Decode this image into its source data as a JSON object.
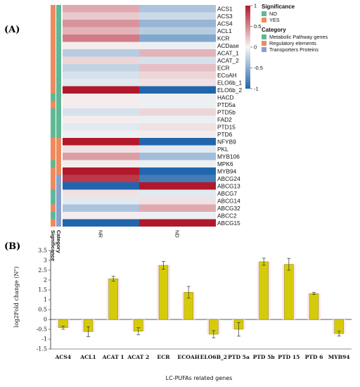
{
  "panel_a_label": "(A)",
  "panel_b_label": "(B)",
  "colors": {
    "sig_no": "#5fb894",
    "sig_yes": "#ef8a5c",
    "cat_metabolic": "#5fb894",
    "cat_regulatory": "#ef8a5c",
    "cat_transporters": "#8aa0cc",
    "bar_fill": "#d4cc0a",
    "bar_stroke": "#8a8400"
  },
  "chart_data": [
    {
      "type": "heatmap",
      "columns": [
        "NR",
        "ND"
      ],
      "annotation_columns": [
        "Significance",
        "Category"
      ],
      "rows": [
        {
          "gene": "ACS1",
          "significance": "YES",
          "category": "Metabolic Pathway genes",
          "values": [
            0.35,
            -0.35
          ]
        },
        {
          "gene": "ACS3",
          "significance": "YES",
          "category": "Metabolic Pathway genes",
          "values": [
            0.2,
            -0.2
          ]
        },
        {
          "gene": "ACS4",
          "significance": "YES",
          "category": "Metabolic Pathway genes",
          "values": [
            0.45,
            -0.45
          ]
        },
        {
          "gene": "ACL1",
          "significance": "YES",
          "category": "Metabolic Pathway genes",
          "values": [
            0.3,
            -0.3
          ]
        },
        {
          "gene": "KCR",
          "significance": "YES",
          "category": "Metabolic Pathway genes",
          "values": [
            0.55,
            -0.55
          ]
        },
        {
          "gene": "ACDase",
          "significance": "YES",
          "category": "Metabolic Pathway genes",
          "values": [
            0.05,
            -0.05
          ]
        },
        {
          "gene": "ACAT_1",
          "significance": "YES",
          "category": "Metabolic Pathway genes",
          "values": [
            -0.3,
            0.3
          ]
        },
        {
          "gene": "ACAT_2",
          "significance": "YES",
          "category": "Metabolic Pathway genes",
          "values": [
            0.15,
            -0.15
          ]
        },
        {
          "gene": "ECR",
          "significance": "YES",
          "category": "Metabolic Pathway genes",
          "values": [
            -0.25,
            0.25
          ]
        },
        {
          "gene": "ECoAH",
          "significance": "YES",
          "category": "Metabolic Pathway genes",
          "values": [
            -0.15,
            0.15
          ]
        },
        {
          "gene": "ELO6b_1",
          "significance": "YES",
          "category": "Metabolic Pathway genes",
          "values": [
            -0.1,
            0.1
          ]
        },
        {
          "gene": "ELO6b_2",
          "significance": "YES",
          "category": "Metabolic Pathway genes",
          "values": [
            1.0,
            -1.0
          ]
        },
        {
          "gene": "HACD",
          "significance": "NO",
          "category": "Metabolic Pathway genes",
          "values": [
            0.05,
            -0.05
          ]
        },
        {
          "gene": "PTD5a",
          "significance": "YES",
          "category": "Metabolic Pathway genes",
          "values": [
            0.05,
            -0.05
          ]
        },
        {
          "gene": "PTD5b",
          "significance": "NO",
          "category": "Metabolic Pathway genes",
          "values": [
            -0.15,
            0.15
          ]
        },
        {
          "gene": "FAD2",
          "significance": "NO",
          "category": "Metabolic Pathway genes",
          "values": [
            0.05,
            -0.05
          ]
        },
        {
          "gene": "PTD15",
          "significance": "NO",
          "category": "Metabolic Pathway genes",
          "values": [
            -0.1,
            0.1
          ]
        },
        {
          "gene": "PTD6",
          "significance": "NO",
          "category": "Metabolic Pathway genes",
          "values": [
            -0.05,
            0.05
          ]
        },
        {
          "gene": "NFYB9",
          "significance": "YES",
          "category": "Regulatory elements",
          "values": [
            1.0,
            -1.0
          ]
        },
        {
          "gene": "PKL",
          "significance": "YES",
          "category": "Regulatory elements",
          "values": [
            0.1,
            -0.1
          ]
        },
        {
          "gene": "MYB106",
          "significance": "YES",
          "category": "Regulatory elements",
          "values": [
            0.4,
            -0.4
          ]
        },
        {
          "gene": "MPK6",
          "significance": "NO",
          "category": "Regulatory elements",
          "values": [
            0.05,
            -0.05
          ]
        },
        {
          "gene": "MYB94",
          "significance": "YES",
          "category": "Regulatory elements",
          "values": [
            1.0,
            -1.0
          ]
        },
        {
          "gene": "ABCG24",
          "significance": "YES",
          "category": "Transporters Proteins",
          "values": [
            0.85,
            -0.85
          ]
        },
        {
          "gene": "ABCG13",
          "significance": "YES",
          "category": "Transporters Proteins",
          "values": [
            -1.0,
            1.0
          ]
        },
        {
          "gene": "ABCG7",
          "significance": "NO",
          "category": "Transporters Proteins",
          "values": [
            0.1,
            -0.1
          ]
        },
        {
          "gene": "ABCG14",
          "significance": "NO",
          "category": "Transporters Proteins",
          "values": [
            -0.1,
            0.1
          ]
        },
        {
          "gene": "ABCG32",
          "significance": "YES",
          "category": "Transporters Proteins",
          "values": [
            -0.35,
            0.35
          ]
        },
        {
          "gene": "ABCC2",
          "significance": "NO",
          "category": "Transporters Proteins",
          "values": [
            0.05,
            -0.05
          ]
        },
        {
          "gene": "ABCG15",
          "significance": "YES",
          "category": "Transporters Proteins",
          "values": [
            -1.0,
            1.0
          ]
        }
      ],
      "color_scale": {
        "min": -1,
        "max": 1,
        "ticks": [
          "1",
          "0.5",
          "0",
          "-0.5",
          "-1"
        ],
        "low_color": "#2166ac",
        "mid_color": "#f7f7f7",
        "high_color": "#b2182b"
      },
      "legend": {
        "significance_title": "Significance",
        "significance_items": [
          "NO",
          "YES"
        ],
        "category_title": "Category",
        "category_items": [
          "Metabolic Pathway genes",
          "Regulatory elements",
          "Transporters Proteins"
        ]
      }
    },
    {
      "type": "bar",
      "categories": [
        "ACS4",
        "ACL1",
        "ACAT 1",
        "ACAT 2",
        "ECR",
        "ECOAH",
        "ELO6B_2",
        "PTD 5a",
        "PTD 5b",
        "PTD 15",
        "PTD 6",
        "MYB94"
      ],
      "values": [
        -0.42,
        -0.62,
        2.07,
        -0.6,
        2.75,
        1.38,
        -0.75,
        -0.5,
        2.93,
        2.8,
        1.32,
        -0.72
      ],
      "errors": [
        0.08,
        0.25,
        0.12,
        0.18,
        0.2,
        0.3,
        0.18,
        0.35,
        0.18,
        0.3,
        0.05,
        0.12
      ],
      "ylabel": "log2Fold change (N\")",
      "xlabel": "LC-PUFAs related genes",
      "ylim": [
        -1.5,
        3.5
      ],
      "yticks": [
        "3.5",
        "3",
        "2.5",
        "2",
        "1.5",
        "1",
        "0.5",
        "0",
        "-0.5",
        "-1",
        "-1.5"
      ],
      "grid": false
    }
  ]
}
